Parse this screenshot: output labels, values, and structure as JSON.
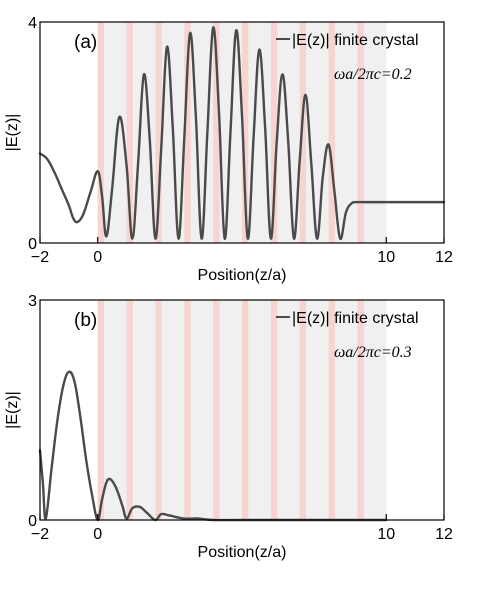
{
  "colors": {
    "background": "#ffffff",
    "shade": "#f0f0f0",
    "stripe": "#f8d4d0",
    "curve": "#4a4a4a",
    "axis": "#000000"
  },
  "chart_data": [
    {
      "type": "line",
      "panel_label": "(a)",
      "legend": "|E(z)| finite crystal",
      "legend_placement": "top-right",
      "annotation": "ωa/2πc=0.2",
      "xlabel": "Position(z/a)",
      "ylabel": "|E(z)|",
      "xlim": [
        -2,
        12
      ],
      "ylim": [
        0,
        4
      ],
      "xticks": [
        "−2",
        "0",
        "10",
        "12"
      ],
      "yticks": [
        "0",
        "4"
      ],
      "grid": false,
      "crystal_region": [
        0,
        10
      ],
      "stripes": [
        0,
        1,
        2,
        3,
        4,
        5,
        6,
        7,
        8,
        9
      ],
      "series": [
        {
          "name": "|E(z)| finite crystal",
          "x": [
            -2.0,
            -1.75,
            -1.5,
            -1.25,
            -1.0,
            -0.85,
            -0.7,
            -0.5,
            -0.25,
            0.0,
            0.15,
            0.3,
            0.5,
            0.75,
            1.0,
            1.2,
            1.4,
            1.6,
            1.8,
            2.0,
            2.2,
            2.4,
            2.6,
            2.8,
            3.0,
            3.2,
            3.4,
            3.6,
            3.8,
            4.0,
            4.2,
            4.4,
            4.6,
            4.8,
            5.0,
            5.2,
            5.4,
            5.6,
            5.8,
            6.0,
            6.2,
            6.4,
            6.6,
            6.8,
            7.0,
            7.2,
            7.4,
            7.6,
            7.8,
            8.0,
            8.2,
            8.4,
            8.6,
            8.8,
            9.0,
            9.2,
            9.4,
            10.0,
            11.0,
            12.0
          ],
          "y": [
            1.62,
            1.52,
            1.28,
            0.98,
            0.68,
            0.45,
            0.38,
            0.52,
            0.92,
            1.3,
            0.85,
            0.12,
            0.98,
            2.28,
            1.4,
            0.08,
            1.45,
            3.05,
            1.9,
            0.08,
            1.7,
            3.55,
            2.1,
            0.08,
            1.9,
            3.8,
            2.3,
            0.08,
            2.0,
            3.9,
            2.4,
            0.08,
            2.0,
            3.85,
            2.3,
            0.08,
            1.9,
            3.5,
            2.1,
            0.08,
            1.8,
            3.05,
            1.85,
            0.08,
            1.5,
            2.68,
            1.45,
            0.08,
            1.2,
            1.78,
            0.95,
            0.08,
            0.55,
            0.72,
            0.74,
            0.74,
            0.74,
            0.74,
            0.74,
            0.74
          ]
        }
      ]
    },
    {
      "type": "line",
      "panel_label": "(b)",
      "legend": "|E(z)| finite crystal",
      "legend_placement": "top-right",
      "annotation": "ωa/2πc=0.3",
      "xlabel": "Position(z/a)",
      "ylabel": "|E(z)|",
      "xlim": [
        -2,
        12
      ],
      "ylim": [
        0,
        3
      ],
      "xticks": [
        "−2",
        "0",
        "10",
        "12"
      ],
      "yticks": [
        "0",
        "3"
      ],
      "grid": false,
      "crystal_region": [
        0,
        10
      ],
      "stripes": [
        0,
        1,
        2,
        3,
        4,
        5,
        6,
        7,
        8,
        9
      ],
      "series": [
        {
          "name": "|E(z)| finite crystal",
          "x": [
            -2.0,
            -1.9,
            -1.8,
            -1.6,
            -1.4,
            -1.2,
            -1.0,
            -0.8,
            -0.6,
            -0.4,
            -0.2,
            0.0,
            0.15,
            0.35,
            0.6,
            0.85,
            1.0,
            1.2,
            1.45,
            1.7,
            2.0,
            2.2,
            2.5,
            3.0,
            3.5,
            4.0,
            5.0,
            6.0,
            8.0,
            10.0
          ],
          "y": [
            0.95,
            0.5,
            0.02,
            0.7,
            1.35,
            1.82,
            2.02,
            1.88,
            1.4,
            0.82,
            0.35,
            0.0,
            0.28,
            0.55,
            0.47,
            0.2,
            0.02,
            0.16,
            0.18,
            0.1,
            0.0,
            0.08,
            0.06,
            0.02,
            0.02,
            0.0,
            0.0,
            0.0,
            0.0,
            0.0
          ]
        }
      ]
    }
  ]
}
